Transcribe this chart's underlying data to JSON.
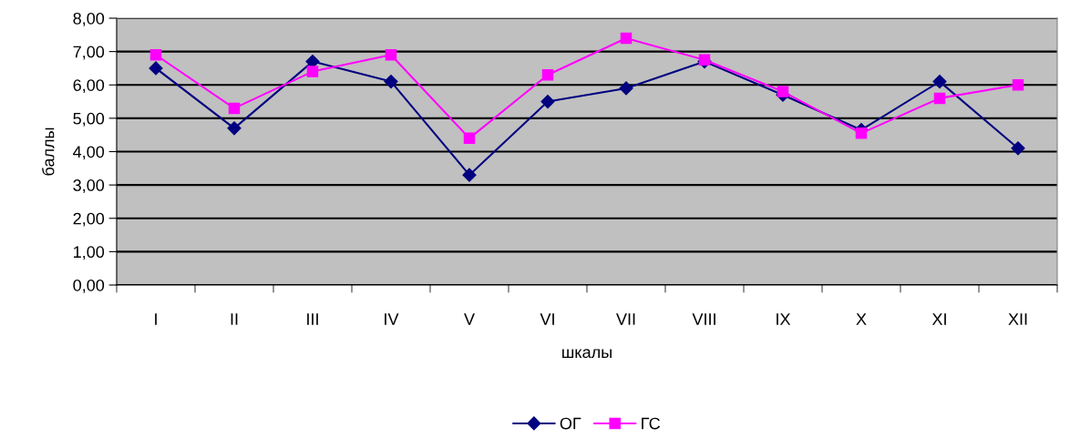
{
  "chart_data": {
    "type": "line",
    "xlabel": "шкалы",
    "ylabel": "баллы",
    "categories": [
      "I",
      "II",
      "III",
      "IV",
      "V",
      "VI",
      "VII",
      "VIII",
      "IX",
      "X",
      "XI",
      "XII"
    ],
    "series": [
      {
        "name": "ОГ",
        "color": "#000080",
        "marker": "diamond",
        "values": [
          6.5,
          4.7,
          6.7,
          6.1,
          3.3,
          5.5,
          5.9,
          6.7,
          5.7,
          4.65,
          6.1,
          4.1
        ]
      },
      {
        "name": "ГС",
        "color": "#ff00ff",
        "marker": "square",
        "values": [
          6.9,
          5.3,
          6.4,
          6.9,
          4.4,
          6.3,
          7.4,
          6.75,
          5.8,
          4.55,
          5.6,
          6.0
        ]
      }
    ],
    "ylim": [
      0,
      8
    ],
    "yticks": [
      {
        "value": 0,
        "label": "0,00"
      },
      {
        "value": 1,
        "label": "1,00"
      },
      {
        "value": 2,
        "label": "2,00"
      },
      {
        "value": 3,
        "label": "3,00"
      },
      {
        "value": 4,
        "label": "4,00"
      },
      {
        "value": 5,
        "label": "5,00"
      },
      {
        "value": 6,
        "label": "6,00"
      },
      {
        "value": 7,
        "label": "7,00"
      },
      {
        "value": 8,
        "label": "8,00"
      }
    ],
    "grid": "y",
    "legend": "bottom",
    "line_style": "solid"
  }
}
